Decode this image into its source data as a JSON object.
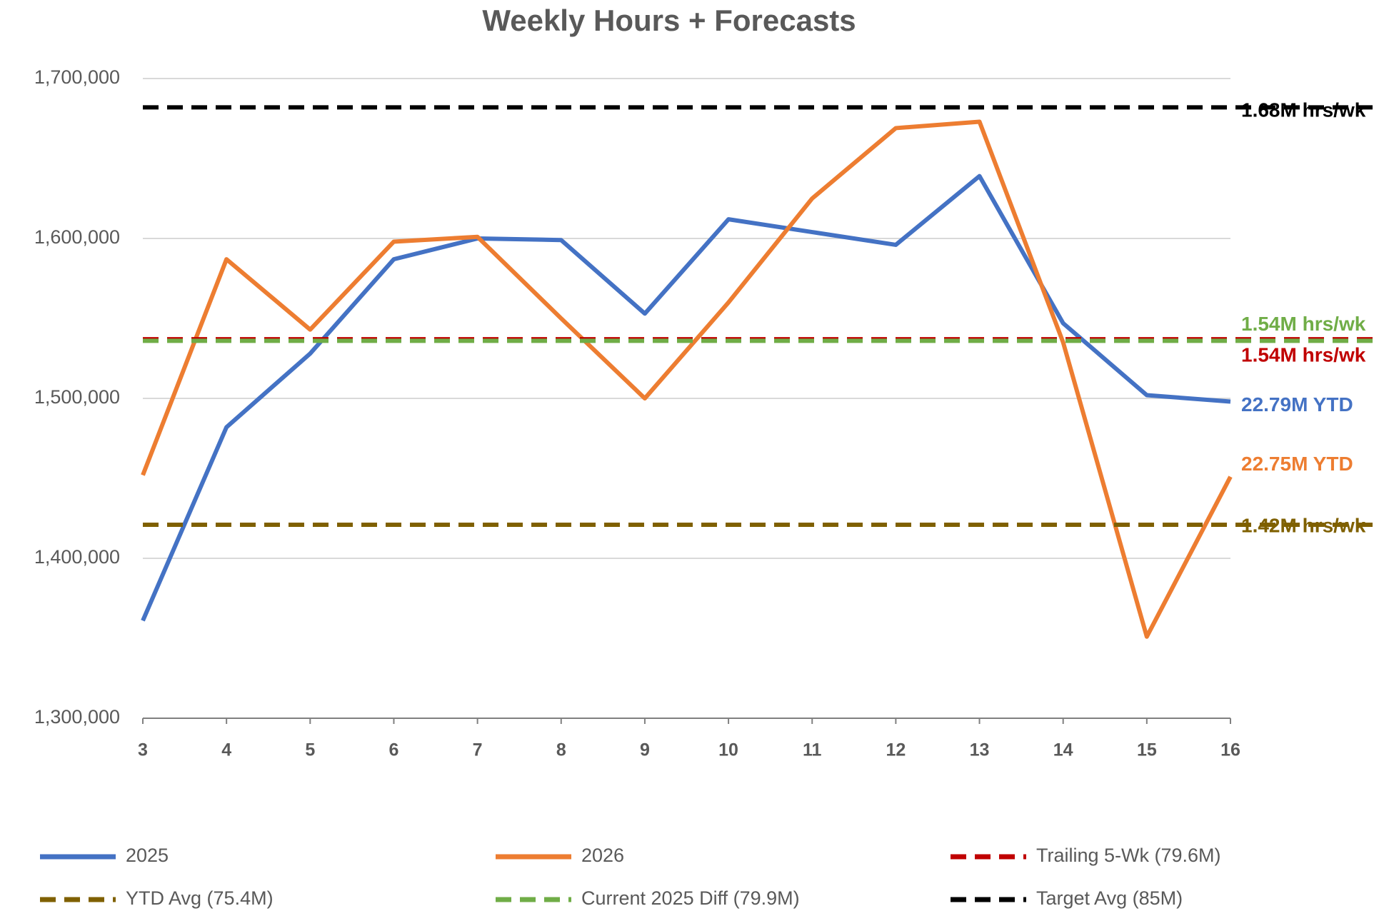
{
  "chart_data": {
    "type": "line",
    "title": "Weekly Hours + Forecasts",
    "x": [
      3,
      4,
      5,
      6,
      7,
      8,
      9,
      10,
      11,
      12,
      13,
      14,
      15,
      16
    ],
    "xlim": [
      3,
      16
    ],
    "xticks": [
      3,
      4,
      5,
      6,
      7,
      8,
      9,
      10,
      11,
      12,
      13,
      14,
      15,
      16
    ],
    "ylim": [
      1300000,
      1700000
    ],
    "yticks": [
      {
        "value": 1300000,
        "label": "1,300,000"
      },
      {
        "value": 1400000,
        "label": "1,400,000"
      },
      {
        "value": 1500000,
        "label": "1,500,000"
      },
      {
        "value": 1600000,
        "label": "1,600,000"
      },
      {
        "value": 1700000,
        "label": "1,700,000"
      }
    ],
    "grid": true,
    "legend": "bottom",
    "series": [
      {
        "name": "2025",
        "color": "#4472c4",
        "values": [
          1361000,
          1482000,
          1528000,
          1587000,
          1600000,
          1599000,
          1553000,
          1612000,
          1604000,
          1596000,
          1639000,
          1547000,
          1502000,
          1498000
        ],
        "end_label": "22.79M YTD"
      },
      {
        "name": "2026",
        "color": "#ed7d31",
        "values": [
          1452000,
          1587000,
          1543000,
          1598000,
          1601000,
          1550000,
          1500000,
          1560000,
          1625000,
          1669000,
          1673000,
          1535000,
          1351000,
          1451000
        ],
        "end_label": "22.75M YTD"
      },
      {
        "name": "Trailing 5-Wk (79.6M)",
        "color": "#c00000",
        "value": 1537000,
        "dashed": true,
        "label": "1.54M hrs/wk"
      },
      {
        "name": "YTD Avg (75.4M)",
        "color": "#7f6000",
        "value": 1421000,
        "dashed": true,
        "label": "1.42M hrs/wk"
      },
      {
        "name": "Current 2025 Diff (79.9M)",
        "color": "#70ad47",
        "value": 1536000,
        "dashed": true,
        "label": "1.54M hrs/wk"
      },
      {
        "name": "Target Avg (85M)",
        "color": "#000000",
        "value": 1682000,
        "dashed": true,
        "label": "1.68M hrs/wk"
      }
    ]
  }
}
